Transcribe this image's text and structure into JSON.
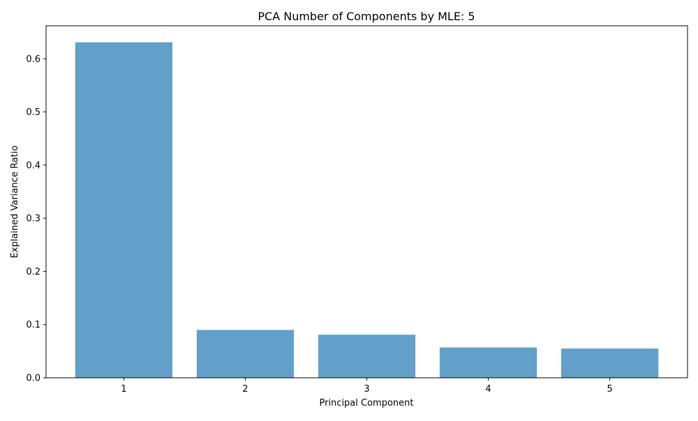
{
  "chart_data": {
    "type": "bar",
    "title": "PCA Number of Components by MLE: 5",
    "xlabel": "Principal Component",
    "ylabel": "Explained Variance Ratio",
    "categories": [
      "1",
      "2",
      "3",
      "4",
      "5"
    ],
    "values": [
      0.631,
      0.09,
      0.081,
      0.057,
      0.055
    ],
    "ylim": [
      0,
      0.662
    ],
    "yticks": [
      0.0,
      0.1,
      0.2,
      0.3,
      0.4,
      0.5,
      0.6
    ],
    "ytick_labels": [
      "0.0",
      "0.1",
      "0.2",
      "0.3",
      "0.4",
      "0.5",
      "0.6"
    ],
    "grid": false,
    "legend": null,
    "colors": {
      "bar": "#1f77b4",
      "bar_opacity": 0.7,
      "axis": "#000000"
    }
  }
}
